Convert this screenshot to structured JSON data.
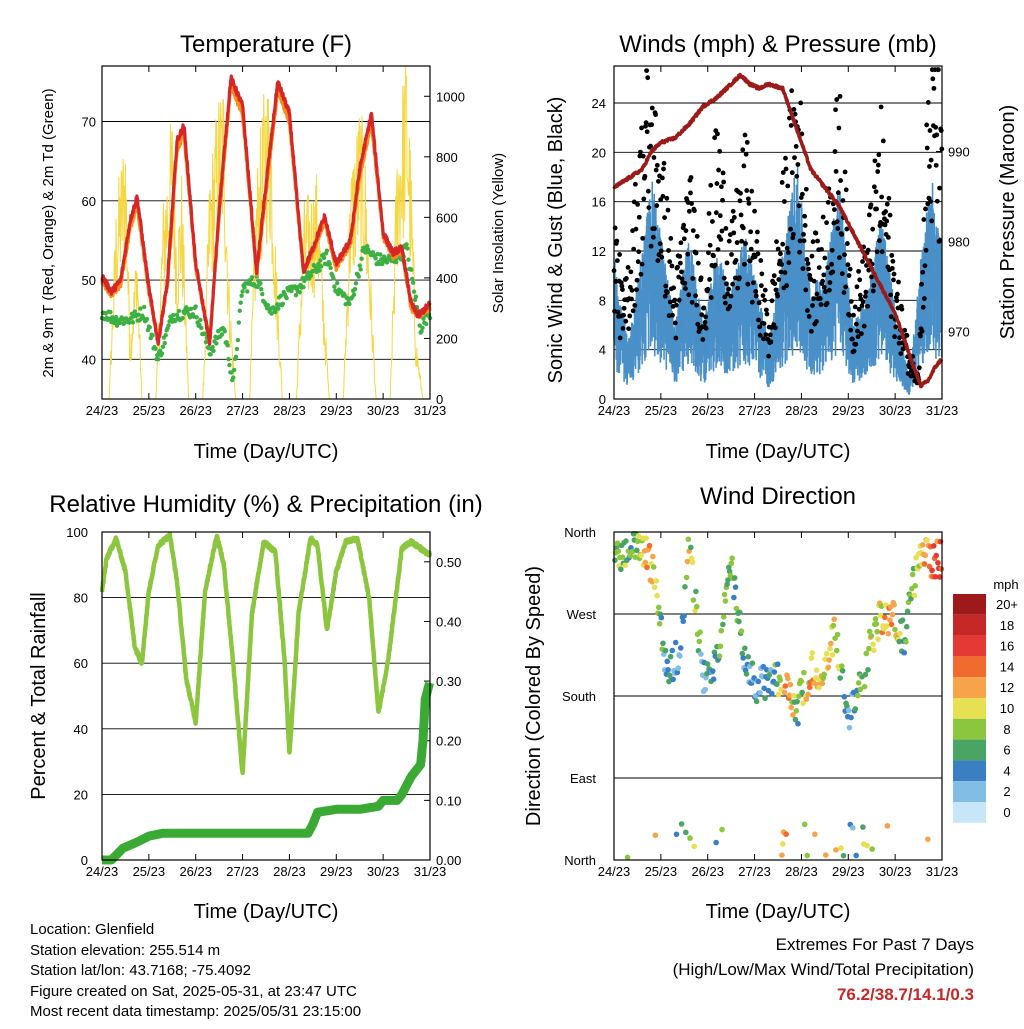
{
  "x_ticks": [
    "24/23",
    "25/23",
    "26/23",
    "27/23",
    "28/23",
    "29/23",
    "30/23",
    "31/23"
  ],
  "info": {
    "location": "Location: Glenfield",
    "elevation": "Station elevation: 255.514 m",
    "latlon": "Station lat/lon: 43.7168; -75.4092",
    "created": "Figure created on Sat, 2025-05-31, at 23:47 UTC",
    "recent": "Most recent data timestamp: 2025/05/31 23:15:00"
  },
  "extremes": {
    "line1": "Extremes For Past 7 Days",
    "line2": "(High/Low/Max Wind/Total Precipitation)",
    "values": "76.2/38.7/14.1/0.3",
    "value_color": "#c62828"
  },
  "colors": {
    "temp_2m": "#d62728",
    "temp_9m": "#ff8c1a",
    "dewpoint": "#3cb043",
    "solar": "#f5d742",
    "wind": "#4a90c8",
    "gust": "#000000",
    "pressure": "#9b1b1b",
    "rh": "#8cc63f",
    "precip": "#3aaa35"
  },
  "chart_data": [
    {
      "type": "line",
      "title": "Temperature (F)",
      "xlabel": "Time (Day/UTC)",
      "ylabel": "2m & 9m T (Red, Orange) & 2m Td (Green)",
      "y2label": "Solar Insolation (Yellow)",
      "x_range_days": [
        24,
        31
      ],
      "ylim": [
        35,
        77
      ],
      "yticks": [
        40,
        50,
        60,
        70
      ],
      "y2lim": [
        0,
        1100
      ],
      "y2ticks": [
        0,
        200,
        400,
        600,
        800,
        1000
      ],
      "series": [
        {
          "name": "2m T",
          "axis": "left",
          "x": [
            24.0,
            24.2,
            24.4,
            24.6,
            24.75,
            25.0,
            25.2,
            25.4,
            25.6,
            25.75,
            26.0,
            26.3,
            26.5,
            26.75,
            27.0,
            27.3,
            27.5,
            27.75,
            28.0,
            28.3,
            28.5,
            28.75,
            29.0,
            29.3,
            29.5,
            29.75,
            30.0,
            30.2,
            30.4,
            30.6,
            30.75,
            31.0
          ],
          "y": [
            50.5,
            48.5,
            50,
            57.5,
            60.5,
            49,
            42,
            50,
            67.5,
            69.5,
            52,
            42,
            59,
            75.5,
            72,
            51,
            62,
            75,
            71,
            51,
            54,
            58,
            52,
            55,
            64,
            71,
            56,
            53.5,
            54,
            47,
            45.5,
            47
          ]
        },
        {
          "name": "9m T",
          "axis": "left",
          "x": [
            24.0,
            24.2,
            24.4,
            24.6,
            24.75,
            25.0,
            25.2,
            25.4,
            25.6,
            25.75,
            26.0,
            26.3,
            26.5,
            26.75,
            27.0,
            27.3,
            27.5,
            27.75,
            28.0,
            28.3,
            28.5,
            28.75,
            29.0,
            29.3,
            29.5,
            29.75,
            30.0,
            30.2,
            30.4,
            30.6,
            30.75,
            31.0
          ],
          "y": [
            50,
            48,
            49.5,
            56.5,
            59.5,
            48.5,
            42.5,
            49.5,
            66.5,
            68.5,
            51.5,
            42.5,
            58,
            74.5,
            71,
            50.5,
            61,
            74,
            70,
            51,
            53.5,
            57.5,
            51.5,
            54.5,
            63,
            70,
            55.5,
            53,
            53.5,
            46.5,
            45.5,
            46.5
          ]
        },
        {
          "name": "2m Td",
          "axis": "left",
          "x": [
            24.0,
            24.3,
            24.6,
            24.9,
            25.2,
            25.5,
            25.8,
            26.0,
            26.3,
            26.6,
            26.8,
            27.0,
            27.3,
            27.6,
            27.9,
            28.2,
            28.5,
            28.8,
            29.0,
            29.3,
            29.6,
            29.9,
            30.2,
            30.5,
            30.8,
            31.0
          ],
          "y": [
            46,
            45,
            45,
            46,
            40,
            45.5,
            46,
            46,
            41,
            44,
            37,
            49,
            50,
            46,
            48,
            49,
            51,
            53,
            49,
            47,
            54,
            52.5,
            52.5,
            54,
            44,
            46
          ]
        },
        {
          "name": "Solar Insolation",
          "axis": "right",
          "x": [
            24.15,
            24.3,
            24.5,
            24.6,
            24.75,
            24.85,
            25.15,
            25.3,
            25.5,
            25.6,
            25.7,
            25.85,
            26.15,
            26.3,
            26.5,
            26.6,
            26.7,
            26.85,
            27.15,
            27.3,
            27.5,
            27.6,
            27.7,
            27.85,
            28.15,
            28.3,
            28.5,
            28.6,
            28.7,
            28.85,
            29.15,
            29.3,
            29.5,
            29.6,
            29.7,
            29.85,
            30.15,
            30.3,
            30.5,
            30.6,
            30.7,
            30.85
          ],
          "y": [
            0,
            600,
            850,
            200,
            500,
            0,
            0,
            600,
            900,
            500,
            700,
            0,
            0,
            700,
            950,
            1000,
            400,
            0,
            0,
            700,
            1000,
            950,
            500,
            0,
            0,
            600,
            650,
            700,
            400,
            0,
            0,
            700,
            900,
            800,
            500,
            0,
            0,
            800,
            1100,
            700,
            200,
            0
          ]
        }
      ]
    },
    {
      "type": "scatter",
      "title": "Winds (mph) & Pressure (mb)",
      "xlabel": "Time (Day/UTC)",
      "ylabel": "Sonic Wind & Gust (Blue, Black)",
      "y2label": "Station Pressure (Maroon)",
      "x_range_days": [
        24,
        31
      ],
      "ylim": [
        0,
        27
      ],
      "yticks": [
        0,
        4,
        8,
        12,
        16,
        20,
        24
      ],
      "y2lim": [
        962.5,
        999.5
      ],
      "y2ticks": [
        970,
        980,
        990
      ],
      "series": [
        {
          "name": "Sonic Wind",
          "axis": "left",
          "x": [
            24.0,
            24.3,
            24.6,
            24.8,
            25.0,
            25.3,
            25.6,
            25.9,
            26.2,
            26.5,
            26.8,
            27.0,
            27.3,
            27.6,
            27.9,
            28.2,
            28.5,
            28.8,
            29.1,
            29.4,
            29.7,
            30.0,
            30.3,
            30.6,
            30.8,
            31.0
          ],
          "y": [
            8,
            3,
            8,
            12,
            9,
            4,
            9,
            4,
            8,
            6,
            9,
            7,
            3,
            8,
            13,
            6,
            7,
            12,
            4,
            6,
            10,
            5,
            1,
            9,
            12,
            8
          ]
        },
        {
          "name": "Gust",
          "axis": "left",
          "x": [
            24.0,
            24.2,
            24.5,
            24.7,
            25.0,
            25.3,
            25.6,
            25.9,
            26.2,
            26.5,
            26.8,
            27.0,
            27.3,
            27.6,
            27.9,
            28.2,
            28.5,
            28.8,
            29.1,
            29.4,
            29.7,
            30.0,
            30.3,
            30.5,
            30.7,
            30.9,
            31.0
          ],
          "y": [
            12,
            6,
            14,
            20,
            16,
            7,
            14,
            7,
            17,
            10,
            16,
            11,
            5,
            13,
            21,
            9,
            11,
            19,
            6,
            10,
            17,
            8,
            3,
            2,
            19,
            22,
            15
          ]
        },
        {
          "name": "Station Pressure",
          "axis": "right",
          "x": [
            24.0,
            24.3,
            24.6,
            24.8,
            25.0,
            25.3,
            25.6,
            25.9,
            26.2,
            26.5,
            26.7,
            26.9,
            27.1,
            27.3,
            27.6,
            27.8,
            28.0,
            28.2,
            28.5,
            28.8,
            29.0,
            29.3,
            29.6,
            29.8,
            30.0,
            30.2,
            30.4,
            30.55,
            30.7,
            30.85,
            31.0
          ],
          "y": [
            986,
            987,
            988,
            990,
            991,
            991.5,
            993,
            995,
            996,
            997.5,
            998.5,
            997.5,
            997,
            997.5,
            997,
            994,
            991,
            988,
            986,
            984,
            982,
            979,
            976,
            974,
            972,
            969,
            966,
            964,
            964.5,
            966,
            967
          ]
        }
      ]
    },
    {
      "type": "line",
      "title": "Relative Humidity (%) & Precipitation (in)",
      "xlabel": "Time (Day/UTC)",
      "ylabel": "Percent & Total Rainfall",
      "x_range_days": [
        24,
        31
      ],
      "ylim": [
        0,
        100
      ],
      "yticks": [
        0,
        20,
        40,
        60,
        80,
        100
      ],
      "y2lim": [
        0,
        0.55
      ],
      "y2ticks": [
        "0.00",
        "0.10",
        "0.20",
        "0.30",
        "0.40",
        "0.50"
      ],
      "series": [
        {
          "name": "Relative Humidity",
          "axis": "left",
          "x": [
            24.0,
            24.1,
            24.3,
            24.5,
            24.7,
            24.85,
            25.0,
            25.2,
            25.45,
            25.6,
            25.8,
            26.0,
            26.2,
            26.45,
            26.6,
            26.8,
            27.0,
            27.2,
            27.45,
            27.7,
            27.9,
            28.0,
            28.2,
            28.45,
            28.6,
            28.8,
            29.0,
            29.2,
            29.45,
            29.7,
            29.9,
            30.1,
            30.4,
            30.6,
            30.8,
            31.0
          ],
          "y": [
            82,
            92,
            98,
            88,
            65,
            60,
            82,
            96,
            99,
            85,
            55,
            42,
            82,
            99,
            90,
            60,
            26,
            75,
            97,
            94,
            60,
            32,
            76,
            98,
            96,
            70,
            88,
            97,
            98,
            80,
            45,
            60,
            95,
            97,
            95,
            93
          ]
        },
        {
          "name": "Total Rainfall",
          "axis": "right",
          "x": [
            24.0,
            24.2,
            24.45,
            24.75,
            25.0,
            25.3,
            25.75,
            26.0,
            26.5,
            27.0,
            27.5,
            28.0,
            28.4,
            28.5,
            28.6,
            29.0,
            29.5,
            29.9,
            30.0,
            30.3,
            30.4,
            30.6,
            30.8,
            30.85,
            30.9,
            31.0
          ],
          "y": [
            0.0,
            0.0,
            0.02,
            0.03,
            0.04,
            0.045,
            0.045,
            0.045,
            0.045,
            0.045,
            0.045,
            0.045,
            0.045,
            0.06,
            0.08,
            0.085,
            0.085,
            0.09,
            0.1,
            0.1,
            0.11,
            0.14,
            0.16,
            0.2,
            0.27,
            0.3
          ]
        }
      ]
    },
    {
      "type": "scatter",
      "title": "Wind Direction",
      "xlabel": "Time (Day/UTC)",
      "ylabel": "Direction (Colored By Speed)",
      "x_range_days": [
        24,
        31
      ],
      "yticks": [
        "North",
        "East",
        "South",
        "West",
        "North"
      ],
      "legend_title": "mph",
      "legend_labels": [
        "20+",
        "18",
        "16",
        "14",
        "12",
        "10",
        "8",
        "6",
        "4",
        "2",
        "0"
      ],
      "legend_colors": [
        "#9e1a1a",
        "#c62828",
        "#e53935",
        "#f26b2e",
        "#f7a34a",
        "#e6e052",
        "#8cc63f",
        "#4aa564",
        "#3a7fc1",
        "#82bde6",
        "#c7e6f7"
      ],
      "series": [
        {
          "name": "Direction",
          "x": [
            24.1,
            24.4,
            24.7,
            24.9,
            25.1,
            25.4,
            25.6,
            25.9,
            26.2,
            26.5,
            26.8,
            27.1,
            27.4,
            27.7,
            27.9,
            28.2,
            28.5,
            28.7,
            29.0,
            29.3,
            29.6,
            29.9,
            30.2,
            30.5,
            30.8
          ],
          "direction_deg": [
            330,
            345,
            340,
            300,
            210,
            225,
            350,
            200,
            215,
            325,
            210,
            190,
            200,
            185,
            165,
            210,
            200,
            250,
            160,
            200,
            260,
            270,
            240,
            340,
            330
          ],
          "speed_mph": [
            8,
            6,
            12,
            9,
            4,
            3,
            10,
            4,
            6,
            7,
            5,
            3,
            4,
            14,
            5,
            12,
            10,
            11,
            3,
            8,
            10,
            12,
            5,
            10,
            14
          ]
        }
      ]
    }
  ]
}
